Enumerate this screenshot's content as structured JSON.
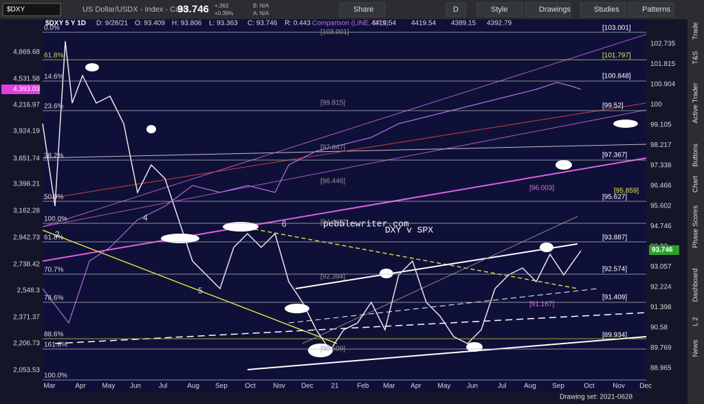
{
  "toolbar": {
    "symbol": "$DXY",
    "title": "US Dollar/USDX - Index - Cash",
    "price": "93.746",
    "change": "+.363",
    "change_pct": "+0.39%",
    "bid": "B: N/A",
    "ask": "A: N/A",
    "buttons": [
      "Share",
      "D",
      "Style",
      "Drawings",
      "Studies",
      "Patterns"
    ]
  },
  "legend": {
    "symbol": "$DXY 5 Y 1D",
    "date": "D: 9/28/21",
    "open": "O: 93.409",
    "high": "H: 93.806",
    "low": "L: 93.363",
    "close": "C: 93.746",
    "range": "R: 0.443",
    "comparison": "Comparison (LINE, SPX)",
    "comparison_values": [
      "4419.54",
      "4419.54",
      "4389.15",
      "4392.79"
    ]
  },
  "left_axis": [
    "4,869.68",
    "4,531.58",
    "4,393.03",
    "4,216.97",
    "3,924.19",
    "3,651.74",
    "3,398.21",
    "3,162.28",
    "2,942.73",
    "2,738.42",
    "2,548.3",
    "2,371.37",
    "2,206.73",
    "2,053.53"
  ],
  "right_axis": [
    "102.735",
    "101.815",
    "100.904",
    "100",
    "99.105",
    "98.217",
    "97.338",
    "96.466",
    "95.602",
    "94.746",
    "93.92",
    "93.057",
    "92.224",
    "91.398",
    "90.58",
    "89.769",
    "88.965"
  ],
  "current_price": "93.746",
  "x_axis": [
    "Mar",
    "Apr",
    "May",
    "Jun",
    "Jul",
    "Aug",
    "Sep",
    "Oct",
    "Nov",
    "Dec",
    "21",
    "Feb",
    "Mar",
    "Apr",
    "May",
    "Jun",
    "Jul",
    "Aug",
    "Sep",
    "Oct",
    "Nov",
    "Dec"
  ],
  "fib_labels": [
    "0.0%",
    "61.8%",
    "14.6%",
    "23.6%",
    "38.2%",
    "50.0%",
    "100.0%",
    "61.8%",
    "70.7%",
    "78.6%",
    "88.6%",
    "161.8%",
    "100.0%"
  ],
  "level_labels": [
    "[103.001]",
    "[101.797]",
    "[100.848]",
    "[99.52]",
    "[97.367]",
    "[96.003]",
    "[95.859]",
    "[95.627]",
    "[93.887]",
    "[92.574]",
    "[91.409]",
    "[91.167]",
    "[89.934]"
  ],
  "mid_labels": [
    "[103.001]",
    "[99.815]",
    "[97.847]",
    "[96.446]",
    "[94.662]",
    "[92.394]",
    "[90.509]"
  ],
  "wave_labels": [
    "2",
    "4",
    "5",
    "6"
  ],
  "watermark": [
    "pebblewriter.com",
    "DXY v SPX"
  ],
  "side_tabs": [
    "Trade",
    "T&S",
    "Active Trader",
    "Buttons",
    "Chart",
    "Phase Scores",
    "Dashboard",
    "L 2",
    "News"
  ],
  "footer": "Drawing set: 2021-0628"
}
